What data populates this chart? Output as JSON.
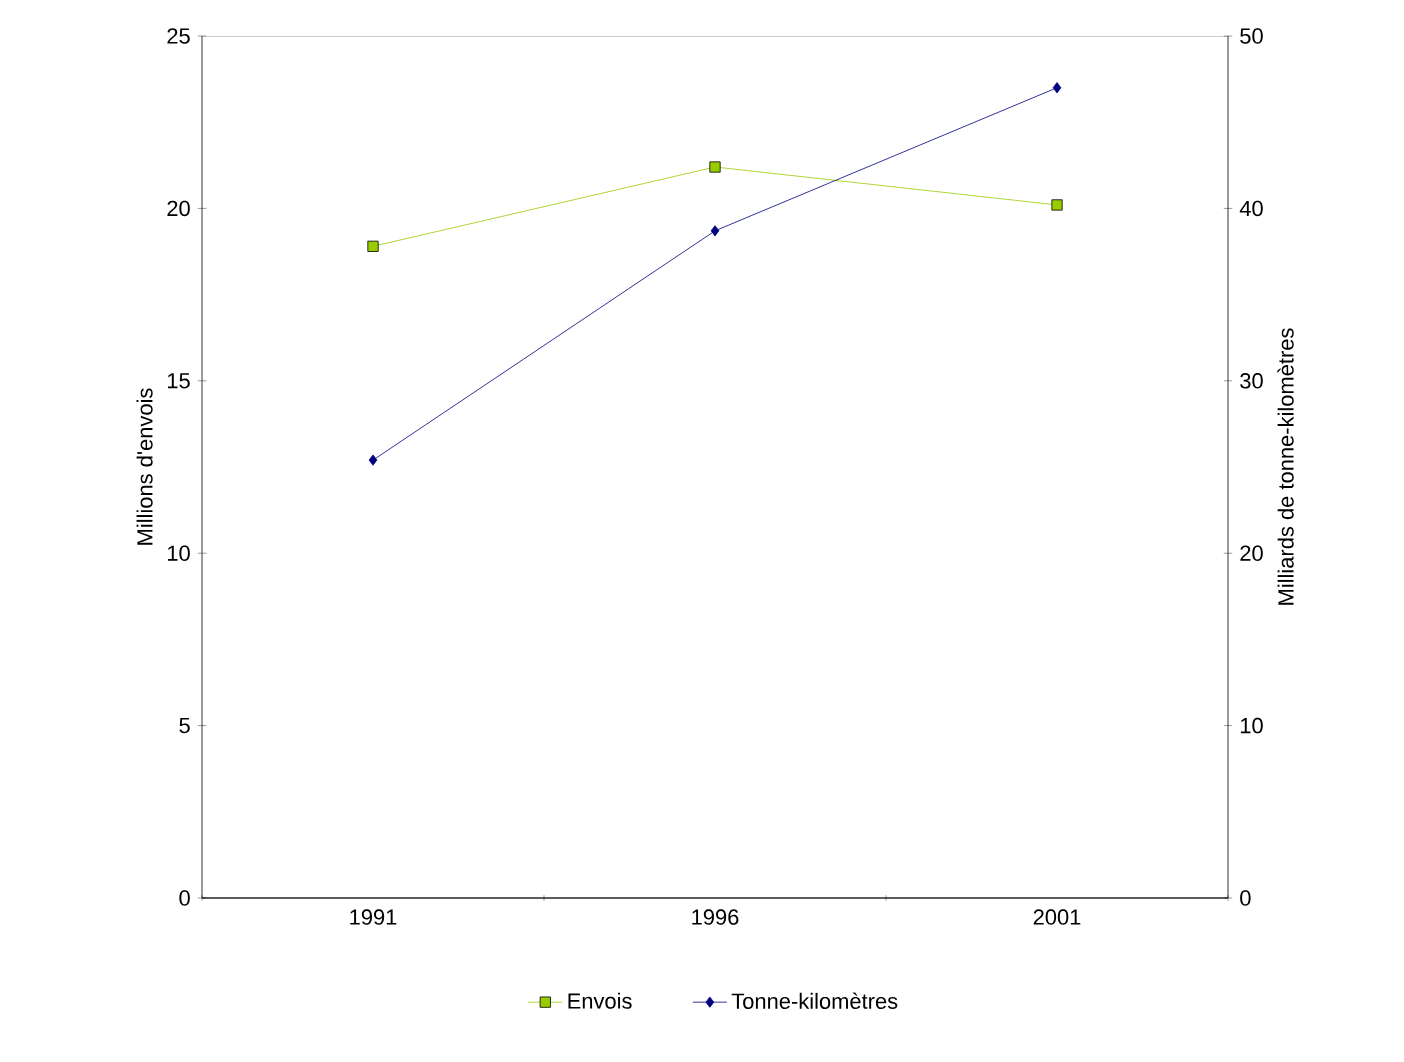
{
  "chart_data": {
    "type": "line",
    "categories": [
      "1991",
      "1996",
      "2001"
    ],
    "series": [
      {
        "name": "Envois",
        "color": "#99cc00",
        "values": [
          18.9,
          21.2,
          20.1
        ],
        "marker": "square"
      },
      {
        "name": "Tonne-kilomètres",
        "color": "#000080",
        "values": [
          25.4,
          38.7,
          47.0
        ],
        "marker": "diamond",
        "axis": "y2"
      }
    ],
    "ylabel": "Millions d'envois",
    "y2label": "Milliards de tonne-kilomètres",
    "ylim": [
      0,
      25
    ],
    "yticks": [
      0,
      5,
      10,
      15,
      20,
      25
    ],
    "y2lim": [
      0,
      50
    ],
    "y2ticks": [
      0,
      10,
      20,
      30,
      40,
      50
    ],
    "grid": false,
    "legend": "bottom"
  }
}
